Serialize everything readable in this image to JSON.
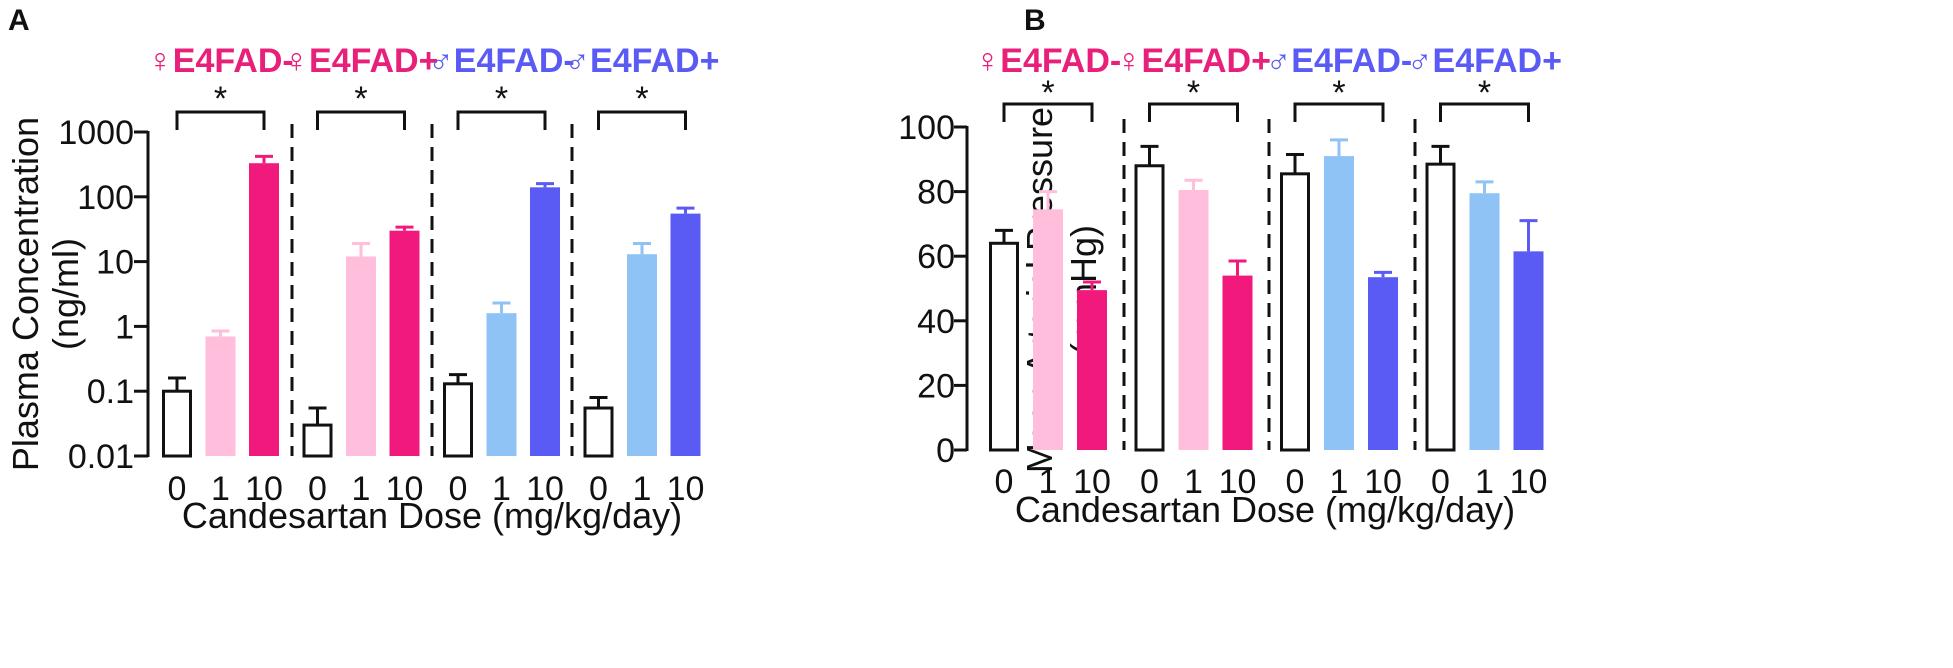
{
  "chart_data": [
    {
      "panel": "A",
      "type": "bar",
      "scale": "log",
      "ylabel_line1": "Plasma Concentration",
      "ylabel_line2": "(ng/ml)",
      "xlabel": "Candesartan Dose (mg/kg/day)",
      "yticks": [
        0.01,
        0.1,
        1,
        10,
        100,
        1000
      ],
      "ytick_labels": [
        "0.01",
        "0.1",
        "1",
        "10",
        "100",
        "1000"
      ],
      "ylim": [
        0.01,
        1000
      ],
      "categories": [
        "0",
        "1",
        "10"
      ],
      "significance": "*",
      "groups": [
        {
          "sex": "♀",
          "name": "E4FAD-",
          "label_color": "#e8207a",
          "bars": [
            {
              "dose": "0",
              "value": 0.1,
              "error": 0.06,
              "fill": "#ffffff"
            },
            {
              "dose": "1",
              "value": 0.7,
              "error": 0.15,
              "fill": "#ffbfdc"
            },
            {
              "dose": "10",
              "value": 330,
              "error": 90,
              "fill": "#f2197c"
            }
          ]
        },
        {
          "sex": "♀",
          "name": "E4FAD+",
          "label_color": "#e8207a",
          "bars": [
            {
              "dose": "0",
              "value": 0.03,
              "error": 0.025,
              "fill": "#ffffff"
            },
            {
              "dose": "1",
              "value": 12,
              "error": 7,
              "fill": "#ffbfdc"
            },
            {
              "dose": "10",
              "value": 30,
              "error": 4,
              "fill": "#f2197c"
            }
          ]
        },
        {
          "sex": "♂",
          "name": "E4FAD-",
          "label_color": "#5a5af5",
          "bars": [
            {
              "dose": "0",
              "value": 0.13,
              "error": 0.05,
              "fill": "#ffffff"
            },
            {
              "dose": "1",
              "value": 1.6,
              "error": 0.7,
              "fill": "#8fc3f5"
            },
            {
              "dose": "10",
              "value": 140,
              "error": 20,
              "fill": "#5a5af5"
            }
          ]
        },
        {
          "sex": "♂",
          "name": "E4FAD+",
          "label_color": "#5a5af5",
          "bars": [
            {
              "dose": "0",
              "value": 0.055,
              "error": 0.025,
              "fill": "#ffffff"
            },
            {
              "dose": "1",
              "value": 13,
              "error": 6,
              "fill": "#8fc3f5"
            },
            {
              "dose": "10",
              "value": 55,
              "error": 12,
              "fill": "#5a5af5"
            }
          ]
        }
      ]
    },
    {
      "panel": "B",
      "type": "bar",
      "scale": "linear",
      "ylabel_line1": "Mean Arterial Pressure",
      "ylabel_line2": "(mmHg)",
      "xlabel": "Candesartan Dose (mg/kg/day)",
      "yticks": [
        0,
        20,
        40,
        60,
        80,
        100
      ],
      "ytick_labels": [
        "0",
        "20",
        "40",
        "60",
        "80",
        "100"
      ],
      "ylim": [
        0,
        100
      ],
      "categories": [
        "0",
        "1",
        "10"
      ],
      "significance": "*",
      "groups": [
        {
          "sex": "♀",
          "name": "E4FAD-",
          "label_color": "#e8207a",
          "bars": [
            {
              "dose": "0",
              "value": 64,
              "error": 4,
              "fill": "#ffffff"
            },
            {
              "dose": "1",
              "value": 74.5,
              "error": 5.5,
              "fill": "#ffbfdc"
            },
            {
              "dose": "10",
              "value": 49.5,
              "error": 2.5,
              "fill": "#f2197c"
            }
          ]
        },
        {
          "sex": "♀",
          "name": "E4FAD+",
          "label_color": "#e8207a",
          "bars": [
            {
              "dose": "0",
              "value": 88,
              "error": 6,
              "fill": "#ffffff"
            },
            {
              "dose": "1",
              "value": 80.5,
              "error": 3,
              "fill": "#ffbfdc"
            },
            {
              "dose": "10",
              "value": 54,
              "error": 4.5,
              "fill": "#f2197c"
            }
          ]
        },
        {
          "sex": "♂",
          "name": "E4FAD-",
          "label_color": "#5a5af5",
          "bars": [
            {
              "dose": "0",
              "value": 85.5,
              "error": 6,
              "fill": "#ffffff"
            },
            {
              "dose": "1",
              "value": 91,
              "error": 5,
              "fill": "#8fc3f5"
            },
            {
              "dose": "10",
              "value": 53.5,
              "error": 1.5,
              "fill": "#5a5af5"
            }
          ]
        },
        {
          "sex": "♂",
          "name": "E4FAD+",
          "label_color": "#5a5af5",
          "bars": [
            {
              "dose": "0",
              "value": 88.5,
              "error": 5.5,
              "fill": "#ffffff"
            },
            {
              "dose": "1",
              "value": 79.5,
              "error": 3.5,
              "fill": "#8fc3f5"
            },
            {
              "dose": "10",
              "value": 61.5,
              "error": 9.5,
              "fill": "#5a5af5"
            }
          ]
        }
      ]
    }
  ]
}
